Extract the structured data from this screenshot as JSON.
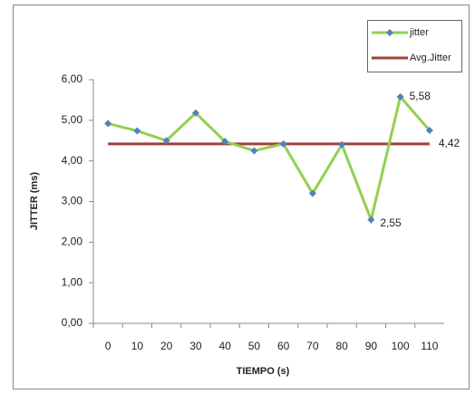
{
  "chart_data": {
    "type": "line",
    "xlabel": "TIEMPO (s)",
    "ylabel": "JITTER (ms)",
    "categories": [
      "0",
      "10",
      "20",
      "30",
      "40",
      "50",
      "60",
      "70",
      "80",
      "90",
      "100",
      "110"
    ],
    "series": [
      {
        "name": "jitter",
        "color": "#92d050",
        "marker_color": "#4f81bd",
        "values": [
          4.92,
          4.74,
          4.5,
          5.18,
          4.48,
          4.25,
          4.42,
          3.2,
          4.4,
          2.55,
          5.58,
          4.75
        ],
        "value_labels": [
          null,
          null,
          null,
          null,
          null,
          null,
          null,
          null,
          null,
          "2,55",
          "5,58",
          null
        ]
      },
      {
        "name": "Avg.Jitter",
        "color": "#a0403c",
        "values": [
          4.42,
          4.42,
          4.42,
          4.42,
          4.42,
          4.42,
          4.42,
          4.42,
          4.42,
          4.42,
          4.42,
          4.42
        ],
        "value_labels": [
          null,
          null,
          null,
          null,
          null,
          null,
          null,
          null,
          null,
          null,
          null,
          "4,42"
        ]
      }
    ],
    "ylim": [
      0,
      6
    ],
    "yticks": [
      {
        "value": 0,
        "label": "0,00"
      },
      {
        "value": 1,
        "label": "1,00"
      },
      {
        "value": 2,
        "label": "2,00"
      },
      {
        "value": 3,
        "label": "3,00"
      },
      {
        "value": 4,
        "label": "4,00"
      },
      {
        "value": 5,
        "label": "5,00"
      },
      {
        "value": 6,
        "label": "6,00"
      }
    ],
    "grid": false,
    "legend": "upper right"
  }
}
